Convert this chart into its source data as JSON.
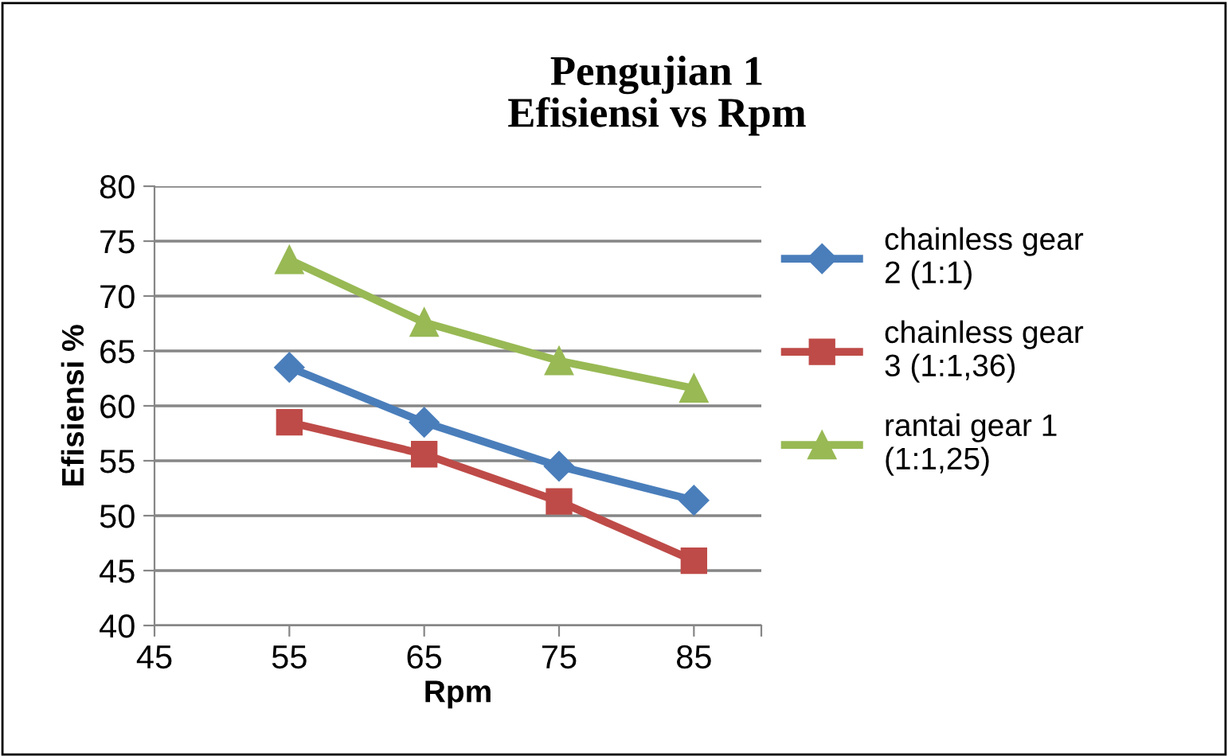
{
  "chart_data": {
    "type": "line",
    "title": "Pengujian 1\nEfisiensi vs Rpm",
    "xlabel": "Rpm",
    "ylabel": "Efisiensi %",
    "x": [
      55,
      65,
      75,
      85
    ],
    "series": [
      {
        "name": "chainless gear\n2 (1:1)",
        "color": "#4a7ebb",
        "marker": "diamond",
        "values": [
          63.5,
          58.5,
          54.5,
          51.4
        ]
      },
      {
        "name": "chainless gear\n3 (1:1,36)",
        "color": "#be4b48",
        "marker": "square",
        "values": [
          58.5,
          55.6,
          51.3,
          45.9
        ]
      },
      {
        "name": "rantai gear 1\n(1:1,25)",
        "color": "#98b954",
        "marker": "triangle",
        "values": [
          73.3,
          67.6,
          64.1,
          61.6
        ]
      }
    ],
    "xlim": [
      45,
      90
    ],
    "xticks": [
      45,
      55,
      65,
      75,
      85,
      {
        "value": 90,
        "label": null
      }
    ],
    "ylim": [
      40,
      80
    ],
    "yticks": [
      40,
      45,
      50,
      55,
      60,
      65,
      70,
      75,
      80
    ],
    "grid": "y",
    "legend": "right",
    "line_style": "solid"
  }
}
